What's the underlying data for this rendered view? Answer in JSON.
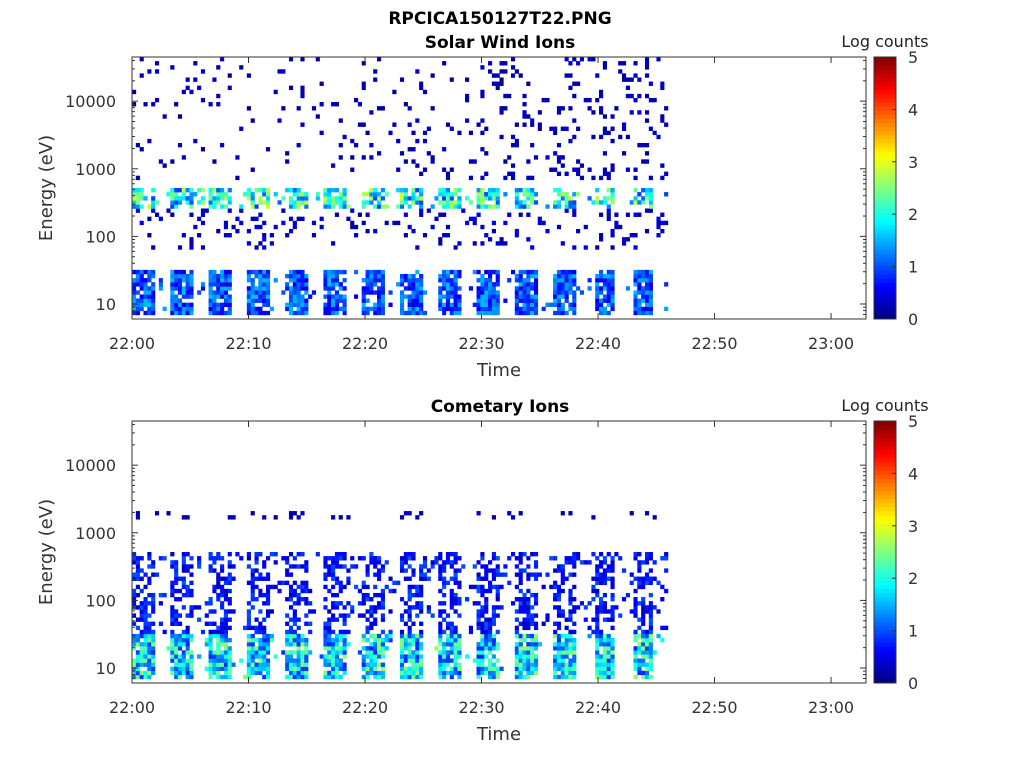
{
  "figure": {
    "title": "RPCICA150127T22.PNG"
  },
  "chart_data": [
    {
      "type": "heatmap",
      "title": "Solar Wind Ions",
      "xlabel": "Time",
      "ylabel": "Energy (eV)",
      "x_ticks": [
        "22:00",
        "22:10",
        "22:20",
        "22:30",
        "22:40",
        "22:50",
        "23:00"
      ],
      "x_range_minutes": [
        0,
        63
      ],
      "y_scale": "log",
      "y_ticks": [
        10,
        100,
        1000,
        10000
      ],
      "y_tick_labels": [
        "10",
        "100",
        "1000",
        "10000"
      ],
      "y_range": [
        6,
        45000
      ],
      "data_end_minute": 46,
      "colorbar": {
        "label": "Log counts",
        "range": [
          0,
          5
        ],
        "ticks": [
          "0",
          "1",
          "2",
          "3",
          "4",
          "5"
        ],
        "colormap": "jet"
      },
      "bands": [
        {
          "e_low": 7,
          "e_high": 30,
          "intensity": 1.2,
          "style": "blocks"
        },
        {
          "e_low": 250,
          "e_high": 550,
          "intensity": 2.2,
          "style": "peaks"
        },
        {
          "e_low": 60,
          "e_high": 250,
          "intensity": 0.4,
          "style": "sparse"
        },
        {
          "e_low": 700,
          "e_high": 45000,
          "intensity": 0.3,
          "style": "scatter"
        }
      ],
      "sweep_period_minutes": 3.3
    },
    {
      "type": "heatmap",
      "title": "Cometary Ions",
      "xlabel": "Time",
      "ylabel": "Energy (eV)",
      "x_ticks": [
        "22:00",
        "22:10",
        "22:20",
        "22:30",
        "22:40",
        "22:50",
        "23:00"
      ],
      "x_range_minutes": [
        0,
        63
      ],
      "y_scale": "log",
      "y_ticks": [
        10,
        100,
        1000,
        10000
      ],
      "y_tick_labels": [
        "10",
        "100",
        "1000",
        "10000"
      ],
      "y_range": [
        6,
        45000
      ],
      "data_end_minute": 46,
      "colorbar": {
        "label": "Log counts",
        "range": [
          0,
          5
        ],
        "ticks": [
          "0",
          "1",
          "2",
          "3",
          "4",
          "5"
        ],
        "colormap": "jet"
      },
      "bands": [
        {
          "e_low": 7,
          "e_high": 30,
          "intensity": 2.0,
          "style": "blocks"
        },
        {
          "e_low": 30,
          "e_high": 550,
          "intensity": 0.8,
          "style": "dense"
        },
        {
          "e_low": 1500,
          "e_high": 2200,
          "intensity": 0.3,
          "style": "sparse"
        }
      ],
      "sweep_period_minutes": 3.3
    }
  ]
}
